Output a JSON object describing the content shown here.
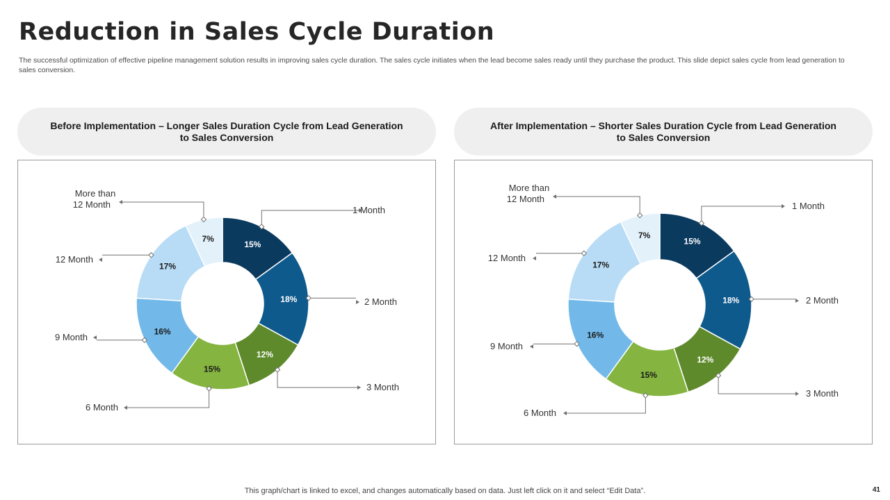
{
  "page": {
    "title": "Reduction in Sales Cycle Duration",
    "subtitle": "The successful optimization of effective  pipeline management solution results in improving sales cycle duration. The sales cycle initiates when the lead become sales ready until they purchase the product. This slide depict sales cycle  from lead generation to sales conversion.",
    "footer": "This graph/chart is linked to excel,  and changes automatically based on data. Just left click on it and select “Edit Data”.",
    "page_number": "41"
  },
  "panels": [
    {
      "header": "Before Implementation – Longer Sales Duration Cycle from Lead Generation to Sales Conversion"
    },
    {
      "header": "After Implementation – Shorter Sales Duration Cycle from Lead Generation to Sales Conversion"
    }
  ],
  "colors": {
    "1 Month": "#0b3a5f",
    "2 Month": "#0f5a8c",
    "3 Month": "#5e8a2c",
    "6 Month": "#85b440",
    "9 Month": "#72b9ea",
    "12 Month": "#b8dcf5",
    "More than 12 Month": "#e3f1fb"
  },
  "chart_data": [
    {
      "type": "pie",
      "variant": "donut",
      "title": "Before Implementation – Longer Sales Duration Cycle from Lead Generation to Sales Conversion",
      "categories": [
        "1 Month",
        "2 Month",
        "3 Month",
        "6 Month",
        "9 Month",
        "12 Month",
        "More than 12 Month"
      ],
      "values": [
        15,
        18,
        12,
        15,
        16,
        17,
        7
      ],
      "data_labels": [
        "15%",
        "18%",
        "12%",
        "15%",
        "16%",
        "17%",
        "7%"
      ]
    },
    {
      "type": "pie",
      "variant": "donut",
      "title": "After Implementation – Shorter Sales Duration Cycle from Lead Generation to Sales Conversion",
      "categories": [
        "1 Month",
        "2 Month",
        "3 Month",
        "6 Month",
        "9 Month",
        "12 Month",
        "More than 12 Month"
      ],
      "values": [
        15,
        18,
        12,
        15,
        16,
        17,
        7
      ],
      "data_labels": [
        "15%",
        "18%",
        "12%",
        "15%",
        "16%",
        "17%",
        "7%"
      ]
    }
  ]
}
